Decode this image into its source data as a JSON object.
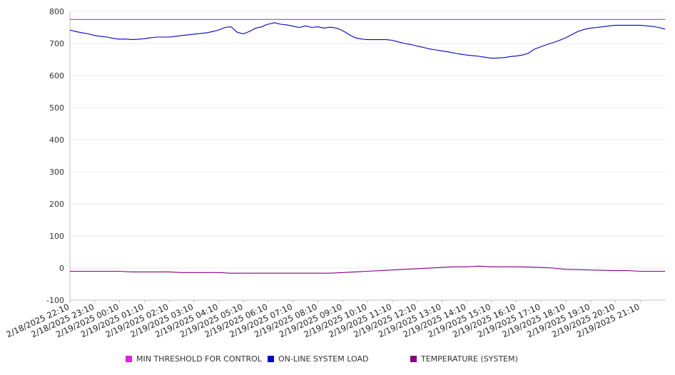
{
  "chart_data": {
    "type": "line",
    "title": "",
    "xlabel": "",
    "ylabel": "",
    "ylim": [
      -100,
      800
    ],
    "yticks": [
      -100,
      0,
      100,
      200,
      300,
      400,
      500,
      600,
      700,
      800
    ],
    "grid": true,
    "legend_position": "bottom",
    "x_tick_labels": [
      "2/18/2025 22:10",
      "2/18/2025 23:10",
      "2/19/2025 00:10",
      "2/19/2025 01:10",
      "2/19/2025 02:10",
      "2/19/2025 03:10",
      "2/19/2025 04:10",
      "2/19/2025 05:10",
      "2/19/2025 06:10",
      "2/19/2025 07:10",
      "2/19/2025 08:10",
      "2/19/2025 09:10",
      "2/19/2025 10:10",
      "2/19/2025 11:10",
      "2/19/2025 12:10",
      "2/19/2025 13:10",
      "2/19/2025 14:10",
      "2/19/2025 15:10",
      "2/19/2025 16:10",
      "2/19/2025 17:10",
      "2/19/2025 18:10",
      "2/19/2025 19:10",
      "2/19/2025 20:10",
      "2/19/2025 21:10"
    ],
    "series": [
      {
        "name": "MIN THRESHOLD FOR CONTROL",
        "color": "#e020e0",
        "x": [
          0,
          24
        ],
        "values": [
          775,
          775
        ]
      },
      {
        "name": "ON-LINE SYSTEM LOAD",
        "color": "#0000cc",
        "x": [
          0,
          0.25,
          0.5,
          0.75,
          1,
          1.25,
          1.5,
          1.75,
          2,
          2.25,
          2.5,
          2.75,
          3,
          3.25,
          3.5,
          3.75,
          4,
          4.25,
          4.5,
          4.75,
          5,
          5.25,
          5.5,
          5.75,
          6,
          6.25,
          6.5,
          6.75,
          7,
          7.25,
          7.5,
          7.75,
          7.9,
          8.1,
          8.25,
          8.5,
          8.75,
          9,
          9.1,
          9.25,
          9.5,
          9.75,
          10,
          10.25,
          10.5,
          10.75,
          11,
          11.25,
          11.5,
          11.75,
          12,
          12.25,
          12.5,
          12.75,
          13,
          13.25,
          13.5,
          13.75,
          14,
          14.25,
          14.5,
          14.75,
          15,
          15.25,
          15.5,
          15.75,
          16,
          16.25,
          16.5,
          16.75,
          17,
          17.25,
          17.5,
          17.75,
          18,
          18.25,
          18.5,
          18.75,
          19,
          19.25,
          19.5,
          19.75,
          20,
          20.25,
          20.5,
          20.75,
          21,
          21.25,
          21.5,
          21.75,
          22,
          22.25,
          22.5,
          22.75,
          23,
          23.25,
          23.5,
          23.75,
          24
        ],
        "values": [
          742,
          737,
          733,
          730,
          725,
          722,
          720,
          716,
          713,
          714,
          712,
          713,
          715,
          718,
          720,
          720,
          720,
          722,
          725,
          727,
          729,
          731,
          733,
          737,
          742,
          750,
          752,
          735,
          730,
          738,
          748,
          752,
          758,
          762,
          765,
          760,
          758,
          754,
          752,
          750,
          755,
          750,
          752,
          748,
          751,
          748,
          740,
          728,
          718,
          714,
          712,
          712,
          712,
          712,
          710,
          705,
          700,
          697,
          692,
          688,
          683,
          680,
          677,
          674,
          670,
          667,
          664,
          662,
          660,
          657,
          654,
          655,
          656,
          659,
          661,
          664,
          670,
          683,
          690,
          697,
          703,
          710,
          718,
          728,
          738,
          744,
          748,
          750,
          752,
          755,
          757,
          757,
          757,
          757,
          757,
          755,
          753,
          750,
          745
        ]
      },
      {
        "name": "TEMPERATURE (SYSTEM)",
        "color": "#800080",
        "x": [
          0,
          2,
          2.5,
          4,
          4.5,
          6,
          6.5,
          8,
          9,
          10,
          10.5,
          11,
          11.5,
          12,
          12.5,
          13,
          14,
          15,
          15.5,
          16,
          16.5,
          17,
          18,
          19,
          19.5,
          20,
          21,
          22,
          22.5,
          23,
          24
        ],
        "values": [
          -10,
          -10,
          -12,
          -12,
          -14,
          -14,
          -16,
          -16,
          -16,
          -16,
          -16,
          -14,
          -12,
          -10,
          -8,
          -6,
          -2,
          2,
          4,
          4,
          6,
          4,
          4,
          2,
          0,
          -4,
          -6,
          -8,
          -8,
          -10,
          -10
        ]
      }
    ]
  }
}
